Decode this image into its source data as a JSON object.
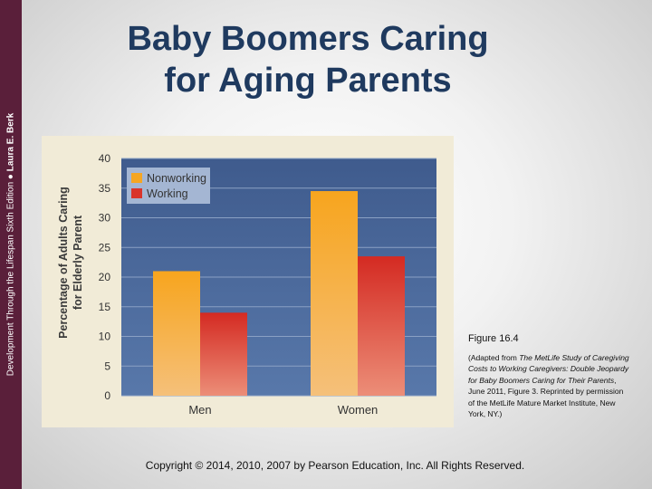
{
  "slide": {
    "side_text": "Development Through the Lifespan Sixth Edition",
    "side_separator": "●",
    "side_author": "Laura E. Berk",
    "title_line1": "Baby Boomers Caring",
    "title_line2": "for Aging Parents",
    "figure_label": "Figure 16.4",
    "caption_parts": [
      {
        "text": "(Adapted from ",
        "italic": false
      },
      {
        "text": "The MetLife Study of Caregiving Costs to Working Caregivers: Double Jeopardy for Baby Boomers Caring for Their Parents",
        "italic": true
      },
      {
        "text": ", June 2011, Figure 3. Reprinted by permission of the MetLife Mature Market Institute, New York, NY.)",
        "italic": false
      }
    ],
    "copyright": "Copyright © 2014, 2010, 2007 by Pearson Education, Inc. All Rights Reserved.",
    "colors": {
      "side_band": "#5a1f3a",
      "title": "#1f3a5f",
      "plot_bg": "#4d6b9e",
      "nonworking": "#f5a623",
      "working": "#d9342b"
    }
  },
  "chart_data": {
    "type": "bar",
    "title": "",
    "categories": [
      "Men",
      "Women"
    ],
    "series": [
      {
        "name": "Nonworking",
        "values": [
          21,
          34.5
        ]
      },
      {
        "name": "Working",
        "values": [
          14,
          23.5
        ]
      }
    ],
    "ylabel_line1": "Percentage of Adults Caring",
    "ylabel_line2": "for Elderly Parent",
    "xlabel": "",
    "ylim": [
      0,
      40
    ],
    "yticks": [
      0,
      5,
      10,
      15,
      20,
      25,
      30,
      35,
      40
    ],
    "grid": true,
    "legend_position": "top-left"
  }
}
